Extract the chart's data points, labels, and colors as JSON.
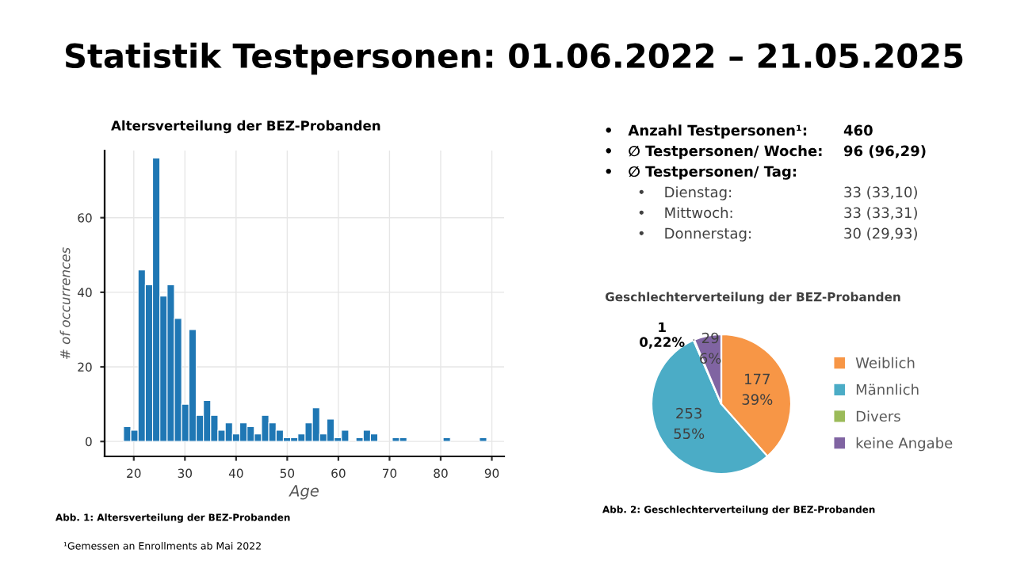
{
  "chart_data": [
    {
      "type": "other",
      "title": "Statistik Testpersonen: 01.06.2022 – 21.05.2025",
      "annotations": [
        "•   Anzahl Testpersonen¹:",
        "460",
        "•   ∅ Testpersonen/ Woche:",
        "96 (96,29)",
        "•   ∅ Testpersonen/ Tag:",
        "•    Dienstag:",
        "33 (33,10)",
        "•    Mittwoch:",
        "33 (33,31)",
        "•    Donnerstag:",
        "30 (29,93)",
        "¹Gemessen an Enrollments ab Mai 2022"
      ]
    },
    {
      "type": "histogram",
      "title": "Altersverteilung der BEZ-Probanden",
      "xlabel": "Age",
      "ylabel": "# of occurrences",
      "bins": [
        18,
        19.42,
        20.84,
        22.26,
        23.68,
        25.1,
        26.52,
        27.94,
        29.36,
        30.78,
        32.2,
        33.62,
        35.04,
        36.46,
        37.88,
        39.3,
        40.72,
        42.14,
        43.56,
        44.98,
        46.4,
        47.82,
        49.24,
        50.66,
        52.08,
        53.5,
        54.92,
        56.34,
        57.76,
        59.18,
        60.6,
        62.02,
        63.44,
        64.86,
        66.28,
        67.7,
        69.12,
        70.54,
        71.96,
        73.38,
        74.8,
        76.22,
        77.64,
        79.06,
        80.48,
        81.9,
        83.32,
        84.74,
        86.16,
        87.58,
        89.0
      ],
      "values": [
        4,
        3,
        46,
        42,
        76,
        39,
        42,
        33,
        10,
        30,
        7,
        11,
        7,
        3,
        5,
        2,
        5,
        4,
        2,
        7,
        5,
        3,
        1,
        1,
        2,
        5,
        9,
        2,
        6,
        1,
        3,
        0,
        1,
        3,
        2,
        0,
        0,
        1,
        1,
        0,
        0,
        0,
        0,
        0,
        1,
        0,
        0,
        0,
        0,
        1
      ],
      "color": "#1f77b4",
      "xlim": [
        14.3,
        92.4
      ],
      "ylim": [
        -4,
        78
      ],
      "xticks": [
        20,
        30,
        40,
        50,
        60,
        70,
        80,
        90
      ],
      "yticks": [
        0,
        20,
        40,
        60
      ],
      "grid": true,
      "annotations": [
        "Abb. 1: Altersverteilung der BEZ-Probanden"
      ]
    },
    {
      "type": "pie",
      "title": "Geschlechterverteilung der BEZ-Probanden",
      "categories": [
        "Weiblich",
        "Männlich",
        "Divers",
        "keine Angabe"
      ],
      "values": [
        177,
        253,
        1,
        29
      ],
      "colors": [
        "#f79646",
        "#4bacc6",
        "#9bbb59",
        "#8064a2"
      ],
      "value_labels": [
        "177\n39%",
        "253\n55%",
        "1\n0,22%",
        "29\n6%"
      ],
      "legend": "right",
      "annotations": [
        "Abb. 2: Geschlechterverteilung der BEZ-Probanden"
      ]
    }
  ]
}
